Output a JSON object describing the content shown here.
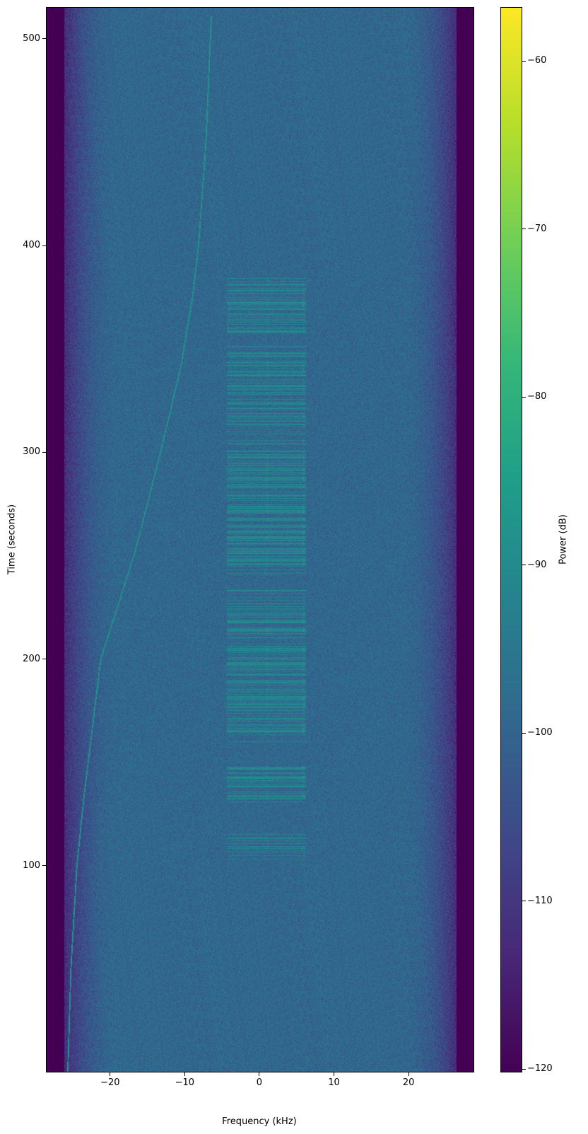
{
  "chart_data": {
    "type": "heatmap",
    "title": "",
    "xlabel": "Frequency (kHz)",
    "ylabel": "Time (seconds)",
    "xlim": [
      -28.6,
      28.8
    ],
    "ylim": [
      0,
      515.4
    ],
    "x_ticks": [
      "−20",
      "−10",
      "0",
      "10",
      "20"
    ],
    "x_tick_values": [
      -20,
      -10,
      0,
      10,
      20
    ],
    "y_ticks": [
      "100",
      "200",
      "300",
      "400",
      "500"
    ],
    "y_tick_values": [
      100,
      200,
      300,
      400,
      500
    ],
    "grid": false,
    "colormap": "viridis",
    "colorbar": {
      "label": "Power (dB)",
      "clim": [
        -120.2,
        -56.8
      ],
      "ticks": [
        "−120",
        "−110",
        "−100",
        "−90",
        "−80",
        "−70",
        "−60"
      ],
      "tick_values": [
        -120,
        -110,
        -100,
        -90,
        -80,
        -70,
        -60
      ],
      "colors": [
        "#440154",
        "#482878",
        "#3e4989",
        "#31688e",
        "#26828e",
        "#1f9e89",
        "#35b779",
        "#6ece58",
        "#b5de2b",
        "#fde725"
      ]
    },
    "noise_floor_db": -99,
    "passband_edge_khz": 26.3,
    "drifting_carrier": {
      "time_s": [
        2,
        50,
        100,
        132,
        200,
        252,
        300,
        341,
        375,
        400,
        450,
        510
      ],
      "freq_khz": [
        -25.7,
        -25.3,
        -24.5,
        -23.6,
        -21.3,
        -16.7,
        -13.3,
        -10.6,
        -9.0,
        -8.2,
        -7.2,
        -6.5
      ],
      "power_db": -88
    },
    "burst_region": {
      "freq_khz": [
        -4.4,
        6.2
      ],
      "time_s": [
        103,
        385
      ],
      "gaps_s": [
        [
          117,
          131
        ],
        [
          148,
          160
        ],
        [
          234,
          240
        ],
        [
          352,
          356
        ]
      ],
      "tone_khz": [
        1.0,
        5.9
      ],
      "power_db": -87
    }
  }
}
